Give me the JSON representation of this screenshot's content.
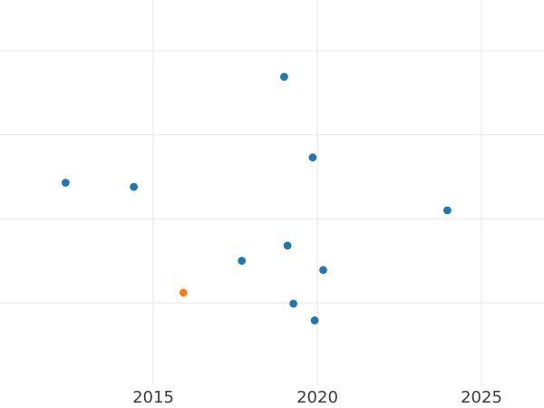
{
  "chart_data": {
    "type": "scatter",
    "title": "",
    "xlabel": "",
    "ylabel": "",
    "grid": true,
    "legend": "none",
    "x_tick_labels": [
      "2015",
      "2020",
      "2025"
    ],
    "x_tick_values": [
      2015,
      2020,
      2025
    ],
    "x_visible_range": [
      2010.3,
      2026.9
    ],
    "y_axis_labeled": false,
    "y_value_basis": "unlabeled y-axis; values estimated in gridline units, 1 unit per horizontal gridline, 0 at plot bottom",
    "y_gridline_values": [
      1,
      2,
      3,
      4
    ],
    "y_visible_range": [
      0,
      4.6
    ],
    "series": [
      {
        "name": "blue-series",
        "color": "#1f77b4",
        "points": [
          [
            2012.33,
            2.43
          ],
          [
            2014.41,
            2.38
          ],
          [
            2017.7,
            1.5
          ],
          [
            2018.99,
            3.69
          ],
          [
            2019.09,
            1.68
          ],
          [
            2019.27,
            0.99
          ],
          [
            2019.86,
            2.73
          ],
          [
            2019.92,
            0.79
          ],
          [
            2020.18,
            1.39
          ],
          [
            2023.96,
            2.1
          ]
        ]
      },
      {
        "name": "orange-series",
        "color": "#ff7f0e",
        "points": [
          [
            2015.92,
            1.12
          ]
        ]
      }
    ],
    "styles": {
      "background": "#ffffff",
      "grid_color": "#ececec",
      "tick_label_color": "#3b3b3b",
      "marker_radius_px": 4.4
    }
  }
}
